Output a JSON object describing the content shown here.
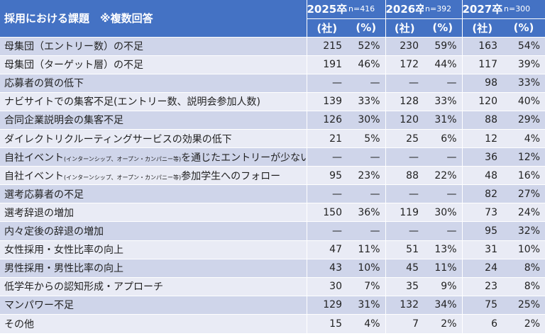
{
  "chart_data": {
    "type": "table",
    "title": "採用における課題　※複数回答",
    "years": [
      {
        "label": "2025卒",
        "n": "n=416"
      },
      {
        "label": "2026卒",
        "n": "n=392"
      },
      {
        "label": "2027卒",
        "n": "n=300"
      }
    ],
    "units": {
      "count": "(社)",
      "pct": "(%)"
    },
    "rows": [
      {
        "label": "母集団（エントリー数）の不足",
        "cells": [
          "215",
          "52%",
          "230",
          "59%",
          "163",
          "54%"
        ]
      },
      {
        "label": "母集団（ターゲット層）の不足",
        "cells": [
          "191",
          "46%",
          "172",
          "44%",
          "117",
          "39%"
        ]
      },
      {
        "label": "応募者の質の低下",
        "cells": [
          "—",
          "—",
          "—",
          "—",
          "98",
          "33%"
        ]
      },
      {
        "label": "ナビサイトでの集客不足(エントリー数、説明会参加人数)",
        "cells": [
          "139",
          "33%",
          "128",
          "33%",
          "120",
          "40%"
        ]
      },
      {
        "label": "合同企業説明会の集客不足",
        "cells": [
          "126",
          "30%",
          "120",
          "31%",
          "88",
          "29%"
        ]
      },
      {
        "label": "ダイレクトリクルーティングサービスの効果の低下",
        "cells": [
          "21",
          "5%",
          "25",
          "6%",
          "12",
          "4%"
        ]
      },
      {
        "label_pre": "自社イベント",
        "label_small": "(インターンシップ、オープン・カンパニー等)",
        "label_post": "を通じたエントリーが少ない",
        "cells": [
          "—",
          "—",
          "—",
          "—",
          "36",
          "12%"
        ]
      },
      {
        "label_pre": "自社イベント",
        "label_small": "(インターンシップ、オープン・カンパニー等)",
        "label_post": "参加学生へのフォロー",
        "cells": [
          "95",
          "23%",
          "88",
          "22%",
          "48",
          "16%"
        ]
      },
      {
        "label": "選考応募者の不足",
        "cells": [
          "—",
          "—",
          "—",
          "—",
          "82",
          "27%"
        ]
      },
      {
        "label": "選考辞退の増加",
        "cells": [
          "150",
          "36%",
          "119",
          "30%",
          "73",
          "24%"
        ]
      },
      {
        "label": "内々定後の辞退の増加",
        "cells": [
          "—",
          "—",
          "—",
          "—",
          "95",
          "32%"
        ]
      },
      {
        "label": "女性採用・女性比率の向上",
        "cells": [
          "47",
          "11%",
          "51",
          "13%",
          "31",
          "10%"
        ]
      },
      {
        "label": "男性採用・男性比率の向上",
        "cells": [
          "43",
          "10%",
          "45",
          "11%",
          "24",
          "8%"
        ]
      },
      {
        "label": "低学年からの認知形成・アプローチ",
        "cells": [
          "30",
          "7%",
          "35",
          "9%",
          "23",
          "8%"
        ]
      },
      {
        "label": "マンパワー不足",
        "cells": [
          "129",
          "31%",
          "132",
          "34%",
          "75",
          "25%"
        ]
      },
      {
        "label": "その他",
        "cells": [
          "15",
          "4%",
          "7",
          "2%",
          "6",
          "2%"
        ]
      }
    ]
  }
}
